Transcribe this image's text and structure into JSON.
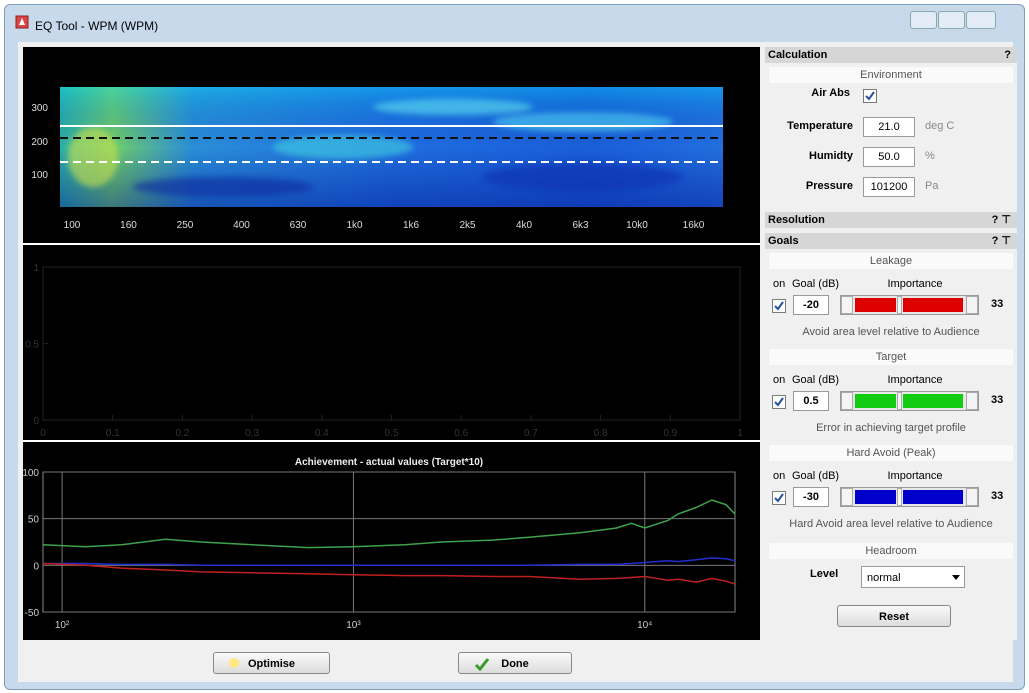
{
  "window": {
    "title": "EQ Tool - WPM (WPM)"
  },
  "heatmap": {
    "y_labels": [
      "300",
      "200",
      "100"
    ],
    "x_labels": [
      "100",
      "160",
      "250",
      "400",
      "630",
      "1k0",
      "1k6",
      "2k5",
      "4k0",
      "6k3",
      "10k0",
      "16k0"
    ]
  },
  "chart_data": [
    {
      "type": "line",
      "xlim": [
        0,
        1
      ],
      "ylim": [
        0,
        1
      ],
      "xticks": [
        0,
        0.1,
        0.2,
        0.3,
        0.4,
        0.5,
        0.6,
        0.7,
        0.8,
        0.9,
        1
      ],
      "yticks": [
        0,
        0.5,
        1
      ]
    },
    {
      "type": "line",
      "title": "Achievement - actual values (Target*10)",
      "xscale": "log",
      "grid": true,
      "xlim": [
        86,
        20400
      ],
      "ylim": [
        -50,
        100
      ],
      "xticks": [
        {
          "value": 100,
          "label": "10²"
        },
        {
          "value": 1000,
          "label": "10³"
        },
        {
          "value": 10000,
          "label": "10⁴"
        }
      ],
      "yticks": [
        -50,
        0,
        50,
        100
      ],
      "x": [
        86,
        120,
        160,
        226,
        300,
        450,
        700,
        1000,
        1500,
        2000,
        3000,
        4000,
        6000,
        8000,
        9000,
        10000,
        12000,
        13000,
        15000,
        17000,
        19000,
        20400
      ],
      "series": [
        {
          "color": "#3fa34d",
          "values": [
            22,
            20,
            22,
            28,
            25,
            22,
            19,
            20,
            22,
            25,
            27,
            30,
            35,
            40,
            45,
            40,
            48,
            55,
            62,
            70,
            65,
            55
          ]
        },
        {
          "color": "#2030d0",
          "values": [
            2,
            2,
            1,
            1,
            0,
            0,
            0,
            0,
            0,
            0,
            0,
            0,
            1,
            1,
            2,
            3,
            5,
            4,
            6,
            8,
            7,
            5
          ]
        },
        {
          "color": "#c02020",
          "values": [
            2,
            0,
            -3,
            -5,
            -7,
            -8,
            -9,
            -10,
            -11,
            -11,
            -12,
            -12,
            -15,
            -14,
            -13,
            -12,
            -16,
            -15,
            -18,
            -14,
            -17,
            -20
          ]
        }
      ]
    }
  ],
  "panel": {
    "calculation": {
      "title": "Calculation",
      "help": "?",
      "environment": "Environment",
      "air_abs": {
        "label": "Air Abs",
        "checked": true
      },
      "fields": [
        {
          "label": "Temperature",
          "value": "21.0",
          "unit": "deg C"
        },
        {
          "label": "Humidty",
          "value": "50.0",
          "unit": "%"
        },
        {
          "label": "Pressure",
          "value": "101200",
          "unit": "Pa"
        }
      ]
    },
    "resolution": {
      "title": "Resolution",
      "controls": "? ⊤"
    },
    "goals": {
      "title": "Goals",
      "controls": "? ⊤",
      "on_label": "on",
      "goal_label": "Goal (dB)",
      "importance_label": "Importance",
      "items": [
        {
          "title": "Leakage",
          "checked": true,
          "goal": "-20",
          "importance": "33",
          "color": "#dd0000",
          "description": "Avoid area level relative to Audience"
        },
        {
          "title": "Target",
          "checked": true,
          "goal": "0.5",
          "importance": "33",
          "color": "#11cc11",
          "description": "Error in achieving target profile"
        },
        {
          "title": "Hard Avoid  (Peak)",
          "checked": true,
          "goal": "-30",
          "importance": "33",
          "color": "#0000cc",
          "description": "Hard Avoid area level relative to Audience"
        }
      ],
      "headroom": "Headroom",
      "level_label": "Level",
      "level": "normal",
      "reset": "Reset"
    }
  },
  "buttons": {
    "optimise": "Optimise",
    "done": "Done"
  }
}
